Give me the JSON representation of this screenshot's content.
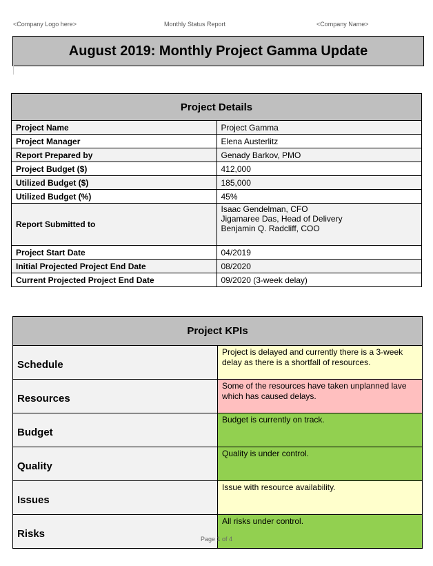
{
  "header": {
    "left": "<Company Logo here>",
    "center": "Monthly Status Report",
    "right": "<Company Name>"
  },
  "title": "August 2019: Monthly Project Gamma Update",
  "details": {
    "heading": "Project Details",
    "rows": [
      {
        "label": "Project Name",
        "value": [
          "Project Gamma"
        ]
      },
      {
        "label": "Project Manager",
        "value": [
          "Elena Austerlitz"
        ]
      },
      {
        "label": "Report Prepared by",
        "value": [
          "Genady Barkov, PMO"
        ]
      },
      {
        "label": "Project Budget ($)",
        "value": [
          "412,000"
        ]
      },
      {
        "label": "Utilized Budget ($)",
        "value": [
          "185,000"
        ]
      },
      {
        "label": "Utilized Budget (%)",
        "value": [
          "45%"
        ]
      },
      {
        "label": "Report Submitted to",
        "value": [
          "Isaac Gendelman, CFO",
          "Jigamaree Das, Head of Delivery",
          "Benjamin Q. Radcliff, COO"
        ]
      },
      {
        "label": "Project Start Date",
        "value": [
          "04/2019"
        ]
      },
      {
        "label": "Initial Projected Project End Date",
        "value": [
          "08/2020"
        ]
      },
      {
        "label": "Current Projected Project End Date",
        "value": [
          "09/2020 (3-week delay)"
        ]
      }
    ]
  },
  "kpis": {
    "heading": "Project KPIs",
    "status_colors": {
      "yellow": "#ffffcc",
      "red": "#ffbfbf",
      "green": "#92d050"
    },
    "rows": [
      {
        "label": "Schedule",
        "text": "Project is delayed and currently there is a 3-week delay as there is a shortfall of resources.",
        "status": "yellow"
      },
      {
        "label": "Resources",
        "text": "Some of the resources have taken unplanned lave which has caused delays.",
        "status": "red"
      },
      {
        "label": "Budget",
        "text": "Budget is currently on track.",
        "status": "green"
      },
      {
        "label": "Quality",
        "text": "Quality is under control.",
        "status": "green"
      },
      {
        "label": "Issues",
        "text": "Issue with resource availability.",
        "status": "yellow"
      },
      {
        "label": "Risks",
        "text": "All risks under control.",
        "status": "green"
      }
    ]
  },
  "footer": "Page 1 of 4"
}
